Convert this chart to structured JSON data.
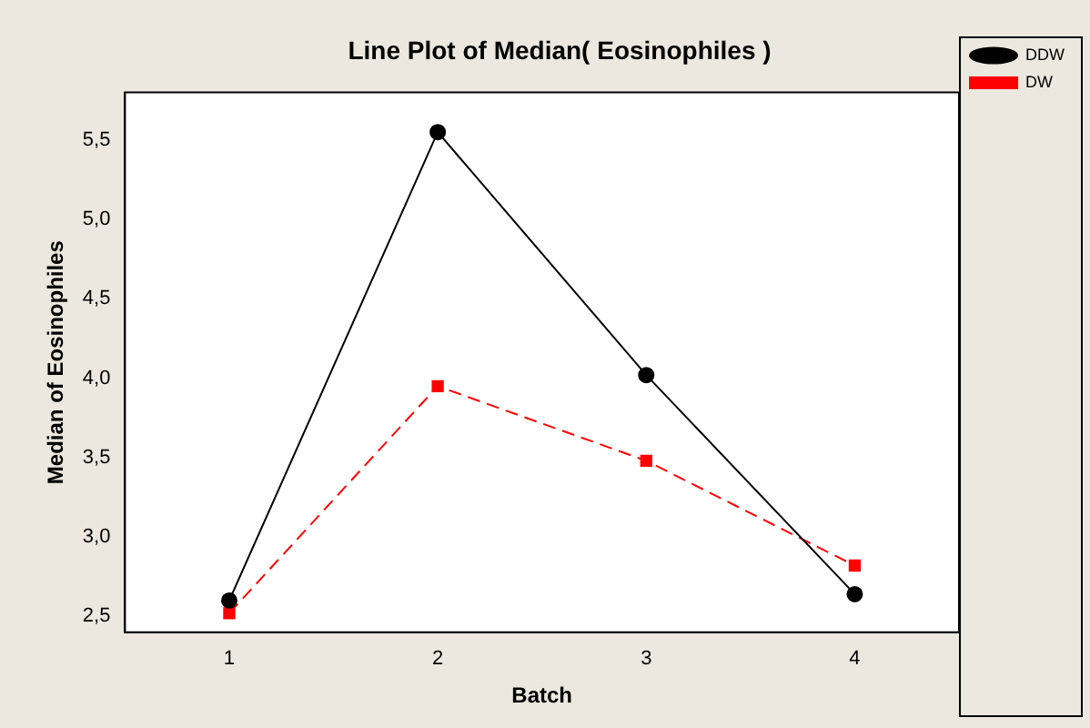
{
  "chart_data": {
    "type": "line",
    "title": "Line Plot of Median( Eosinophiles )",
    "xlabel": "Batch",
    "ylabel": "Median of Eosinophiles",
    "categories": [
      "1",
      "2",
      "3",
      "4"
    ],
    "series": [
      {
        "name": "DDW",
        "color": "#000000",
        "values": [
          2.6,
          5.55,
          4.02,
          2.64
        ],
        "marker": "circle",
        "line_style": "solid"
      },
      {
        "name": "DW",
        "color": "#ff0000",
        "values": [
          2.52,
          3.95,
          3.48,
          2.82
        ],
        "marker": "square",
        "line_style": "dashed"
      }
    ],
    "ylim": [
      2.4,
      5.8
    ],
    "yticks": [
      {
        "value": 2.5,
        "label": "2,5"
      },
      {
        "value": 3,
        "label": "3,0"
      },
      {
        "value": 3.5,
        "label": "3,5"
      },
      {
        "value": 4,
        "label": "4,0"
      },
      {
        "value": 4.5,
        "label": "4,5"
      },
      {
        "value": 5,
        "label": "5,0"
      },
      {
        "value": 5.5,
        "label": "5,5"
      }
    ],
    "grid": false,
    "legend": "top right"
  }
}
